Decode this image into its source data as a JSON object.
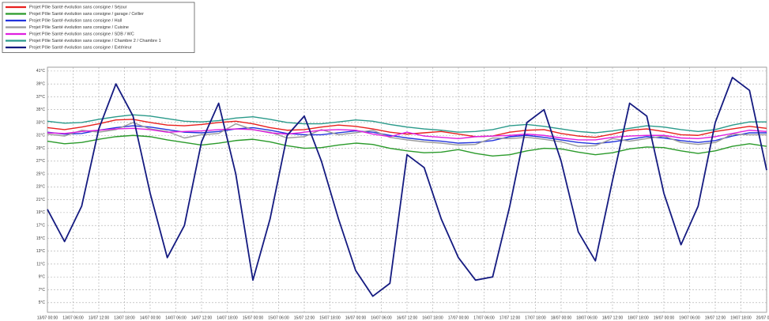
{
  "chart_data": {
    "type": "line",
    "legend": "top-left",
    "grid": true,
    "x": [
      0,
      4,
      8,
      12,
      16,
      20,
      24,
      28,
      32,
      36,
      40,
      44,
      48,
      52,
      56,
      60,
      64,
      68,
      72,
      76,
      80,
      84,
      88,
      92,
      96,
      100,
      104,
      108,
      112,
      116,
      120,
      124,
      128,
      132,
      136,
      140,
      144,
      148,
      152,
      156,
      160,
      164,
      168
    ],
    "xlim": [
      0,
      168
    ],
    "xticks": [
      {
        "value": 0,
        "label": "13/07 00:00"
      },
      {
        "value": 6,
        "label": "13/07 06:00"
      },
      {
        "value": 12,
        "label": "13/07 12:00"
      },
      {
        "value": 18,
        "label": "13/07 18:00"
      },
      {
        "value": 24,
        "label": "14/07 00:00"
      },
      {
        "value": 30,
        "label": "14/07 06:00"
      },
      {
        "value": 36,
        "label": "14/07 12:00"
      },
      {
        "value": 42,
        "label": "14/07 18:00"
      },
      {
        "value": 48,
        "label": "15/07 00:00"
      },
      {
        "value": 54,
        "label": "15/07 06:00"
      },
      {
        "value": 60,
        "label": "15/07 12:00"
      },
      {
        "value": 66,
        "label": "15/07 18:00"
      },
      {
        "value": 72,
        "label": "16/07 00:00"
      },
      {
        "value": 78,
        "label": "16/07 06:00"
      },
      {
        "value": 84,
        "label": "16/07 12:00"
      },
      {
        "value": 90,
        "label": "16/07 18:00"
      },
      {
        "value": 96,
        "label": "17/07 00:00"
      },
      {
        "value": 102,
        "label": "17/07 06:00"
      },
      {
        "value": 108,
        "label": "17/07 12:00"
      },
      {
        "value": 114,
        "label": "17/07 18:00"
      },
      {
        "value": 120,
        "label": "18/07 00:00"
      },
      {
        "value": 126,
        "label": "18/07 06:00"
      },
      {
        "value": 132,
        "label": "18/07 12:00"
      },
      {
        "value": 138,
        "label": "18/07 18:00"
      },
      {
        "value": 144,
        "label": "19/07 00:00"
      },
      {
        "value": 150,
        "label": "19/07 06:00"
      },
      {
        "value": 156,
        "label": "19/07 12:00"
      },
      {
        "value": 162,
        "label": "19/07 18:00"
      },
      {
        "value": 168,
        "label": "20/07 00:00"
      }
    ],
    "ylim": [
      3.5,
      41.6
    ],
    "yticks": [
      {
        "value": 41,
        "label": "41°C"
      },
      {
        "value": 39,
        "label": "39°C"
      },
      {
        "value": 37,
        "label": "37°C"
      },
      {
        "value": 35,
        "label": "35°C"
      },
      {
        "value": 33,
        "label": "33°C"
      },
      {
        "value": 31,
        "label": "31°C"
      },
      {
        "value": 29,
        "label": "29°C"
      },
      {
        "value": 27,
        "label": "27°C"
      },
      {
        "value": 25,
        "label": "25°C"
      },
      {
        "value": 23,
        "label": "23°C"
      },
      {
        "value": 21,
        "label": "21°C"
      },
      {
        "value": 19,
        "label": "19°C"
      },
      {
        "value": 17,
        "label": "17°C"
      },
      {
        "value": 15,
        "label": "15°C"
      },
      {
        "value": 13,
        "label": "13°C"
      },
      {
        "value": 11,
        "label": "11°C"
      },
      {
        "value": 9,
        "label": "9°C"
      },
      {
        "value": 7,
        "label": "7°C"
      },
      {
        "value": 5,
        "label": "5°C"
      }
    ],
    "series": [
      {
        "name": "Projet Pôle Santé évolution sans consigne / Séjour",
        "color": "#e8201e",
        "values": [
          32.2,
          31.9,
          32.3,
          32.8,
          33.4,
          33.5,
          33.0,
          32.6,
          32.5,
          32.7,
          33.0,
          33.2,
          32.8,
          32.2,
          31.8,
          31.9,
          32.3,
          32.6,
          32.4,
          32.0,
          31.5,
          31.2,
          31.4,
          31.6,
          31.2,
          30.8,
          30.9,
          31.5,
          31.8,
          31.9,
          31.3,
          30.9,
          30.7,
          31.2,
          31.8,
          32.0,
          31.6,
          31.1,
          31.0,
          31.6,
          32.0,
          32.4,
          32.1
        ]
      },
      {
        "name": "Projet Pôle Santé évolution sans consigne / garage / Cellier",
        "color": "#2a9a2a",
        "values": [
          30.1,
          29.7,
          29.9,
          30.4,
          30.8,
          31.0,
          30.8,
          30.3,
          29.9,
          29.5,
          29.8,
          30.2,
          30.4,
          30.0,
          29.4,
          29.0,
          29.1,
          29.5,
          29.8,
          29.6,
          29.0,
          28.6,
          28.3,
          28.4,
          28.8,
          28.2,
          27.8,
          28.0,
          28.6,
          29.0,
          28.9,
          28.4,
          28.0,
          28.3,
          28.9,
          29.2,
          29.1,
          28.6,
          28.2,
          28.6,
          29.3,
          29.7,
          29.3
        ]
      },
      {
        "name": "Projet Pôle Santé évolution sans consigne / Hall",
        "color": "#2233dd",
        "values": [
          31.5,
          31.2,
          31.3,
          31.8,
          32.2,
          32.5,
          32.3,
          31.9,
          31.5,
          31.4,
          31.6,
          32.0,
          32.2,
          31.8,
          31.3,
          31.1,
          31.1,
          31.4,
          31.7,
          31.5,
          31.0,
          30.6,
          30.3,
          30.1,
          29.8,
          29.9,
          30.2,
          30.8,
          31.0,
          30.7,
          30.3,
          29.9,
          29.7,
          30.0,
          30.4,
          30.8,
          30.6,
          30.2,
          29.9,
          30.2,
          30.9,
          31.4,
          31.4
        ]
      },
      {
        "name": "Projet Pôle Santé évolution sans consigne / Cuisine",
        "color": "#9a9a9a",
        "values": [
          31.2,
          30.9,
          31.8,
          31.5,
          31.9,
          33.0,
          32.0,
          31.6,
          30.6,
          31.1,
          31.3,
          32.8,
          31.9,
          31.5,
          30.6,
          30.8,
          31.9,
          31.1,
          31.4,
          31.8,
          30.7,
          30.3,
          30.0,
          29.8,
          29.5,
          29.6,
          30.6,
          30.5,
          30.7,
          30.4,
          30.0,
          29.3,
          29.4,
          30.5,
          30.1,
          30.5,
          30.9,
          29.9,
          29.6,
          29.9,
          31.2,
          31.1,
          31.1
        ]
      },
      {
        "name": "Projet Pôle Santé évolution sans consigne / SDB / WC",
        "color": "#e020e0",
        "values": [
          31.4,
          31.3,
          31.6,
          31.8,
          32.0,
          32.1,
          31.9,
          31.5,
          31.6,
          31.7,
          31.9,
          32.0,
          31.9,
          31.4,
          31.2,
          31.5,
          31.8,
          31.9,
          31.8,
          31.2,
          30.8,
          31.5,
          30.9,
          30.7,
          30.5,
          30.8,
          30.9,
          31.0,
          31.2,
          31.0,
          30.6,
          30.3,
          30.3,
          30.7,
          30.9,
          31.0,
          31.0,
          30.6,
          30.5,
          30.8,
          31.3,
          31.8,
          31.6
        ]
      },
      {
        "name": "Projet Pôle Santé évolution sans consigne / Chambre 2 / Chambre 1",
        "color": "#2a9a8a",
        "values": [
          33.2,
          32.9,
          33.0,
          33.5,
          33.9,
          34.2,
          34.0,
          33.6,
          33.2,
          33.1,
          33.3,
          33.7,
          33.9,
          33.5,
          33.0,
          32.8,
          32.8,
          33.1,
          33.4,
          33.2,
          32.7,
          32.3,
          32.0,
          31.8,
          31.5,
          31.6,
          31.9,
          32.5,
          32.7,
          32.4,
          32.0,
          31.6,
          31.4,
          31.7,
          32.1,
          32.5,
          32.3,
          31.9,
          31.6,
          31.9,
          32.6,
          33.1,
          33.1
        ]
      },
      {
        "name": "Projet Pôle Santé évolution sans consigne / Extérieur",
        "color": "#141a80",
        "values": [
          19.5,
          14.5,
          20,
          32,
          39,
          34,
          22,
          12,
          17,
          30,
          36,
          25,
          8.5,
          18,
          31,
          34,
          27,
          18,
          10,
          6,
          8,
          28,
          26,
          18,
          12,
          8.5,
          9,
          20,
          33,
          35,
          27,
          16,
          11.5,
          24,
          36,
          34,
          22,
          14,
          20,
          33,
          40,
          38,
          25.6
        ]
      }
    ]
  }
}
